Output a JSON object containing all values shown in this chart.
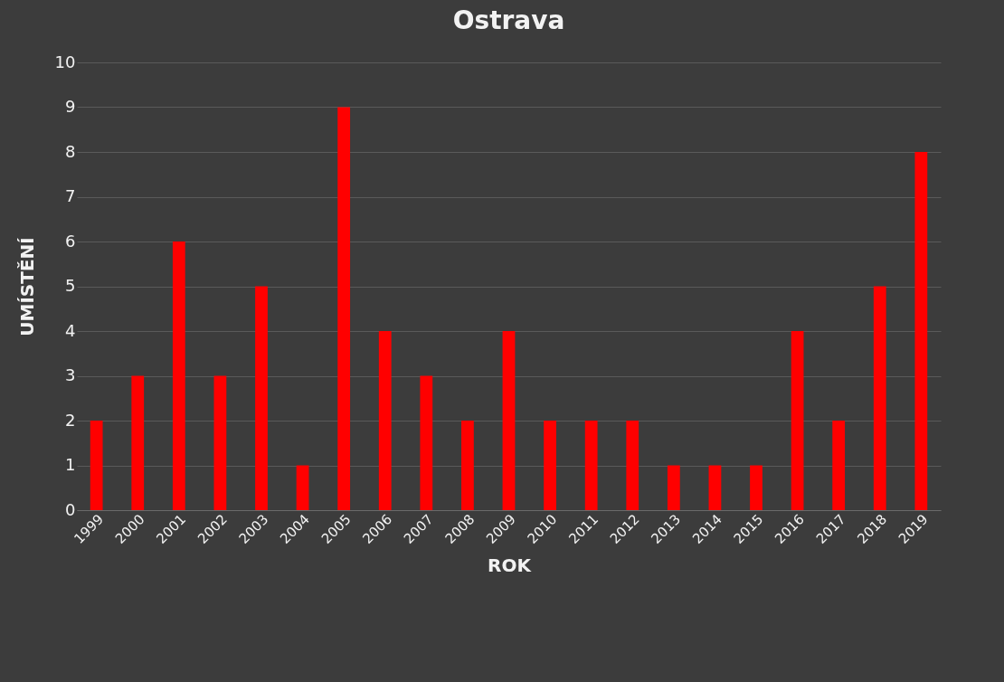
{
  "chart_data": {
    "type": "bar",
    "title": "Ostrava",
    "xlabel": "ROK",
    "ylabel": "UMÍSTĚNÍ",
    "categories": [
      "1999",
      "2000",
      "2001",
      "2002",
      "2003",
      "2004",
      "2005",
      "2006",
      "2007",
      "2008",
      "2009",
      "2010",
      "2011",
      "2012",
      "2013",
      "2014",
      "2015",
      "2016",
      "2017",
      "2018",
      "2019"
    ],
    "values": [
      2,
      3,
      6,
      3,
      5,
      1,
      9,
      4,
      3,
      2,
      4,
      2,
      2,
      2,
      1,
      1,
      1,
      4,
      2,
      5,
      8
    ],
    "color": "#ff0000",
    "ylim": [
      0,
      10
    ],
    "yticks": [
      0,
      1,
      2,
      3,
      4,
      5,
      6,
      7,
      8,
      9,
      10
    ],
    "grid": "y"
  }
}
